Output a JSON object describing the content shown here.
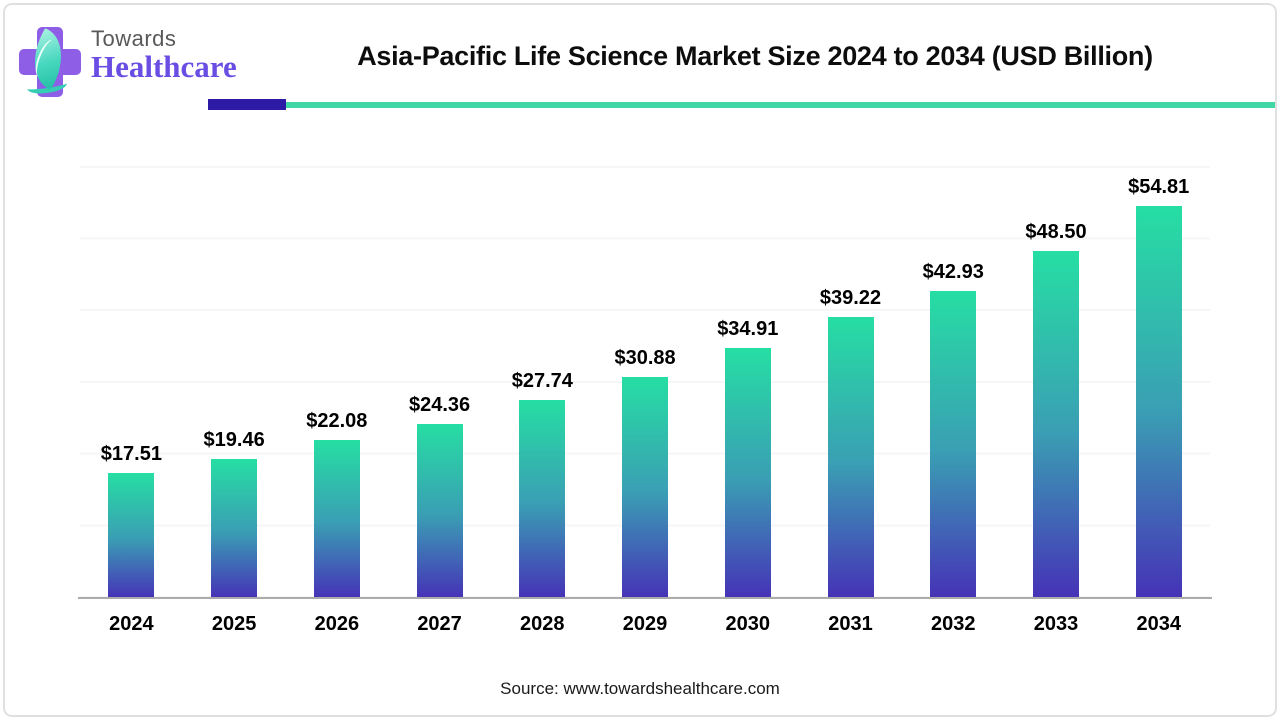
{
  "header": {
    "logo": {
      "line1": "Towards",
      "line2": "Healthcare"
    },
    "title": "Asia-Pacific Life Science Market Size 2024 to 2034 (USD Billion)"
  },
  "footer": {
    "source": "Source: www.towardshealthcare.com"
  },
  "colors": {
    "bar_top": "#26dea3",
    "bar_mid": "#3a9fb4",
    "bar_bottom": "#4632b7",
    "divider_purple": "#2d1ba6",
    "divider_teal": "#40d6a6",
    "logo_purple": "#8e5fe6",
    "logo_leaf": "#49d8c0",
    "towards_text": "#585858",
    "healthcare_text": "#6a4ee4",
    "axis_line": "#ababab"
  },
  "chart_data": {
    "type": "bar",
    "title": "Asia-Pacific Life Science Market Size 2024 to 2034 (USD Billion)",
    "unit": "USD Billion",
    "categories": [
      "2024",
      "2025",
      "2026",
      "2027",
      "2028",
      "2029",
      "2030",
      "2031",
      "2032",
      "2033",
      "2034"
    ],
    "values": [
      17.51,
      19.46,
      22.08,
      24.36,
      27.74,
      30.88,
      34.91,
      39.22,
      42.93,
      48.5,
      54.81
    ],
    "value_labels": [
      "$17.51",
      "$19.46",
      "$22.08",
      "$24.36",
      "$27.74",
      "$30.88",
      "$34.91",
      "$39.22",
      "$42.93",
      "$48.50",
      "$54.81"
    ],
    "xlabel": "",
    "ylabel": "",
    "ylim": [
      0,
      64
    ],
    "grid": "horizontal-faint",
    "gridline_step": 10,
    "legend": "none"
  }
}
